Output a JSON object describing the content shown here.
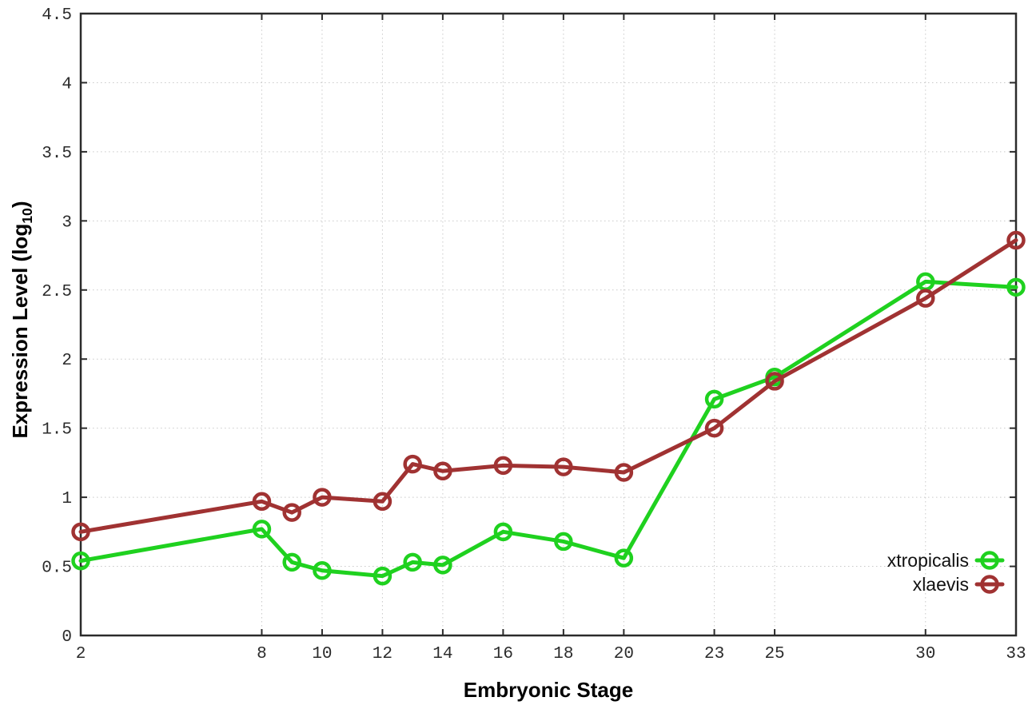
{
  "chart_data": {
    "type": "line",
    "title": "",
    "xlabel": "Embryonic Stage",
    "ylabel_prefix": "Expression Level (log",
    "ylabel_sub": "10",
    "ylabel_suffix": ")",
    "x": [
      2,
      8,
      9,
      10,
      12,
      13,
      14,
      16,
      18,
      20,
      23,
      25,
      30,
      33
    ],
    "series": [
      {
        "name": "xtropicalis",
        "color": "#1fd11f",
        "values": [
          0.54,
          0.77,
          0.53,
          0.47,
          0.43,
          0.53,
          0.51,
          0.75,
          0.68,
          0.56,
          1.71,
          1.87,
          2.56,
          2.52
        ]
      },
      {
        "name": "xlaevis",
        "color": "#a03232",
        "values": [
          0.75,
          0.97,
          0.89,
          1.0,
          0.97,
          1.24,
          1.19,
          1.23,
          1.22,
          1.18,
          1.5,
          1.84,
          2.44,
          2.86
        ]
      }
    ],
    "xtick_labels": [
      "2",
      "8",
      "10",
      "12",
      "14",
      "16",
      "18",
      "20",
      "23",
      "25",
      "30",
      "33"
    ],
    "xtick_values": [
      2,
      8,
      10,
      12,
      14,
      16,
      18,
      20,
      23,
      25,
      30,
      33
    ],
    "ytick_labels": [
      "0",
      "0.5",
      "1",
      "1.5",
      "2",
      "2.5",
      "3",
      "3.5",
      "4",
      "4.5"
    ],
    "ytick_values": [
      0,
      0.5,
      1,
      1.5,
      2,
      2.5,
      3,
      3.5,
      4,
      4.5
    ],
    "xlim": [
      2,
      33
    ],
    "ylim": [
      0,
      4.5
    ],
    "grid": true,
    "legend_position": "inside-bottom-right",
    "marker": "open-circle",
    "axis_color": "#2b2b2b",
    "grid_color": "#c9c9c9",
    "tick_label_color": "#2b2b2b",
    "legend_text_color": "#111111"
  }
}
